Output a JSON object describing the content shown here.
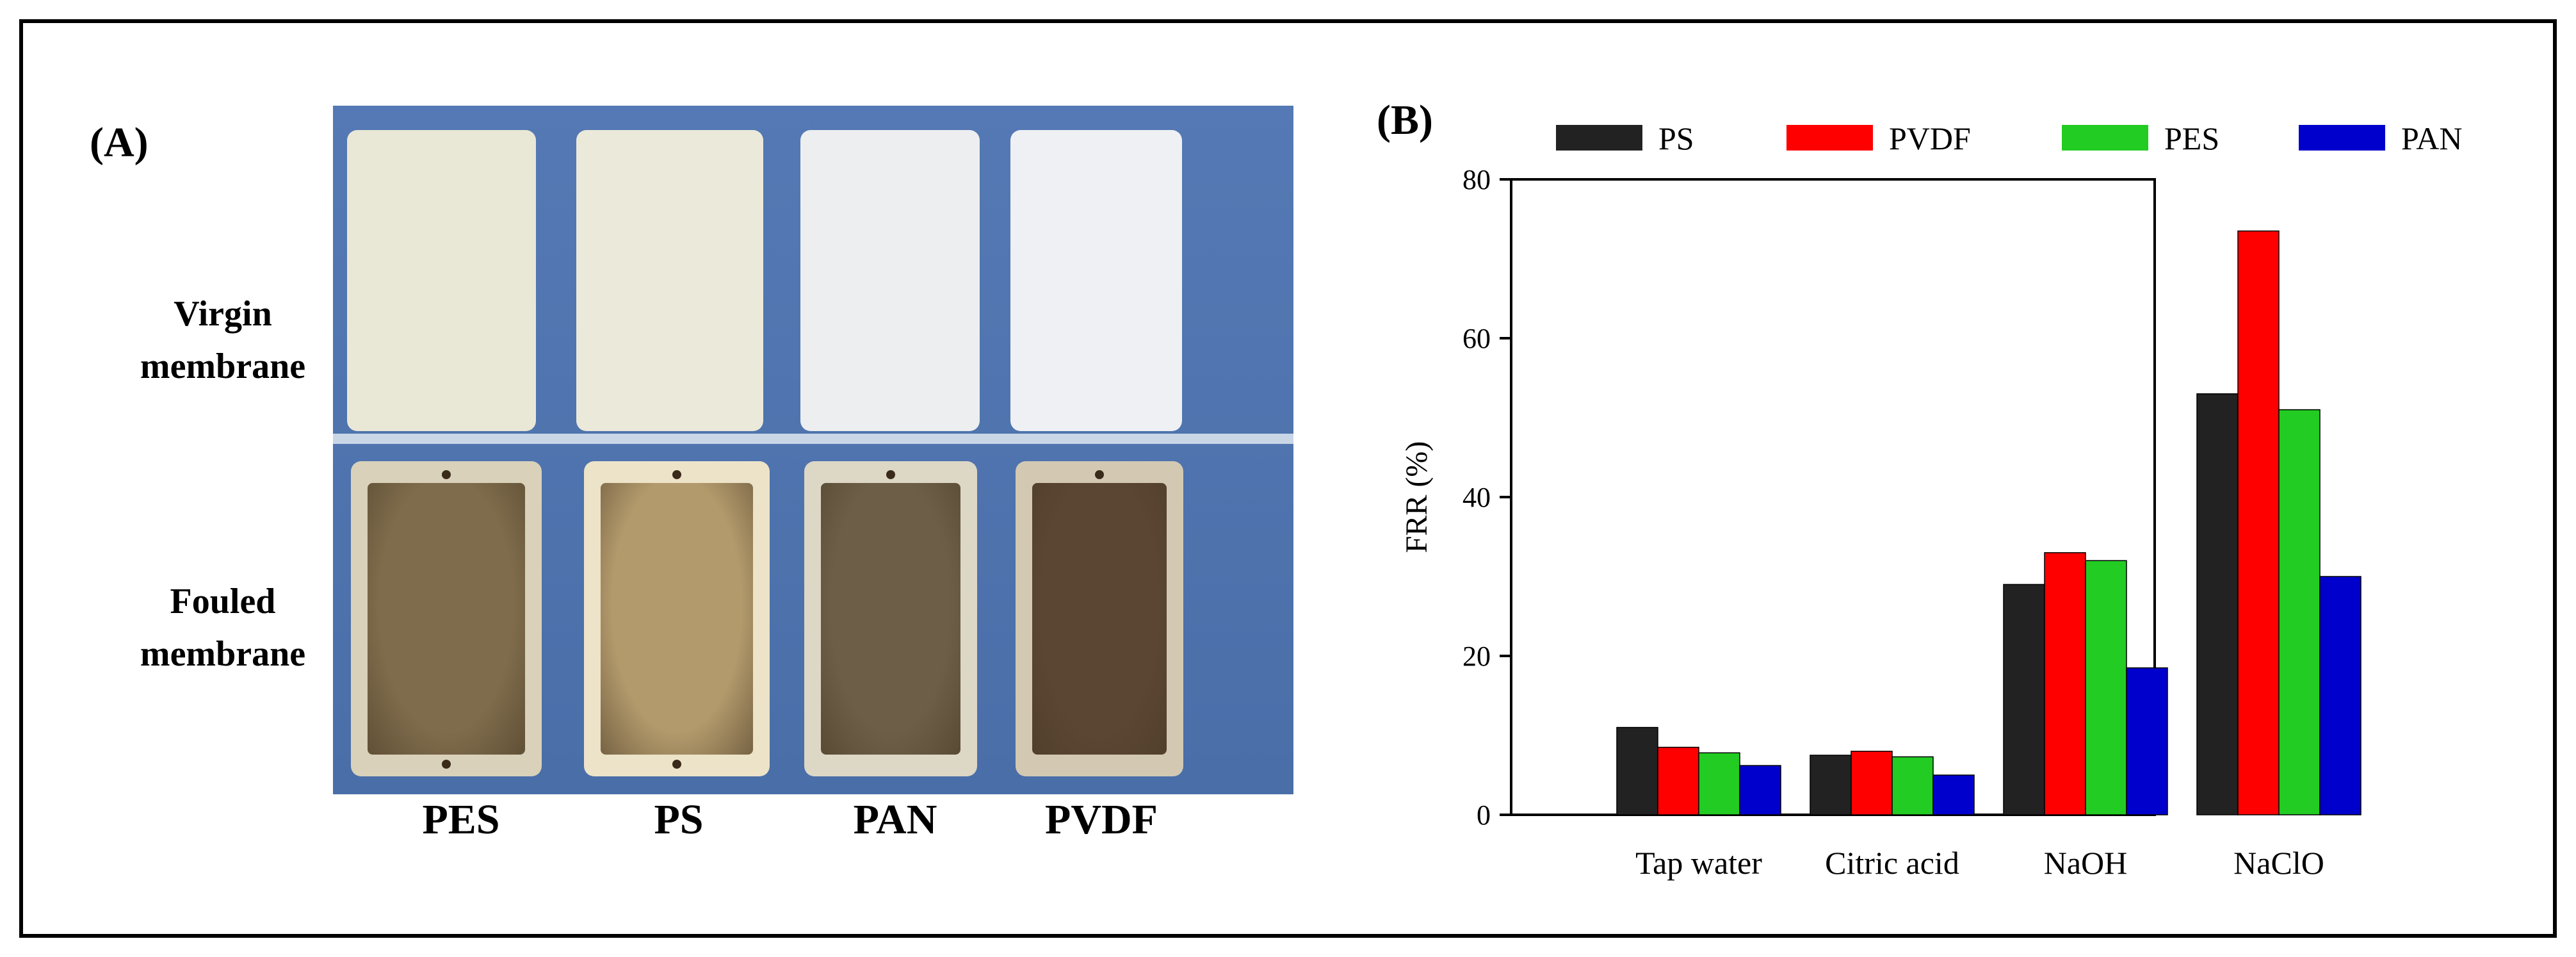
{
  "panel_a": {
    "label": "(A)",
    "rows": {
      "virgin": "Virgin\nmembrane",
      "fouled": "Fouled\nmembrane"
    },
    "membranes": [
      "PES",
      "PS",
      "PAN",
      "PVDF"
    ],
    "colors": {
      "background_blue": "#5479b4",
      "virgin": [
        "#e9e7d6",
        "#ebe9da",
        "#edeef0",
        "#eef0f3"
      ],
      "fouled": [
        "#7f6c4c",
        "#b39a6c",
        "#6d5f47",
        "#5b4633"
      ],
      "fouled_frame": [
        "#d9d1ba",
        "#ece3c8",
        "#ddd7c6",
        "#d3c9b3"
      ]
    }
  },
  "chart_data": {
    "panel_label": "(B)",
    "type": "bar",
    "categories": [
      "Tap water",
      "Citric acid",
      "NaOH",
      "NaClO"
    ],
    "series": [
      {
        "name": "PS",
        "color": "#222222",
        "values": [
          11,
          7.5,
          29,
          53
        ]
      },
      {
        "name": "PVDF",
        "color": "#ff0000",
        "values": [
          8.5,
          8,
          33,
          73.5
        ]
      },
      {
        "name": "PES",
        "color": "#22cc22",
        "values": [
          7.8,
          7.3,
          32,
          51
        ]
      },
      {
        "name": "PAN",
        "color": "#0000cc",
        "values": [
          6.2,
          5,
          18.5,
          30
        ]
      }
    ],
    "ylabel": "FRR (%)",
    "xlabel": "",
    "ylim": [
      0,
      80
    ],
    "yticks": [
      0,
      20,
      40,
      60,
      80
    ],
    "legend_position": "top",
    "grid": false
  }
}
